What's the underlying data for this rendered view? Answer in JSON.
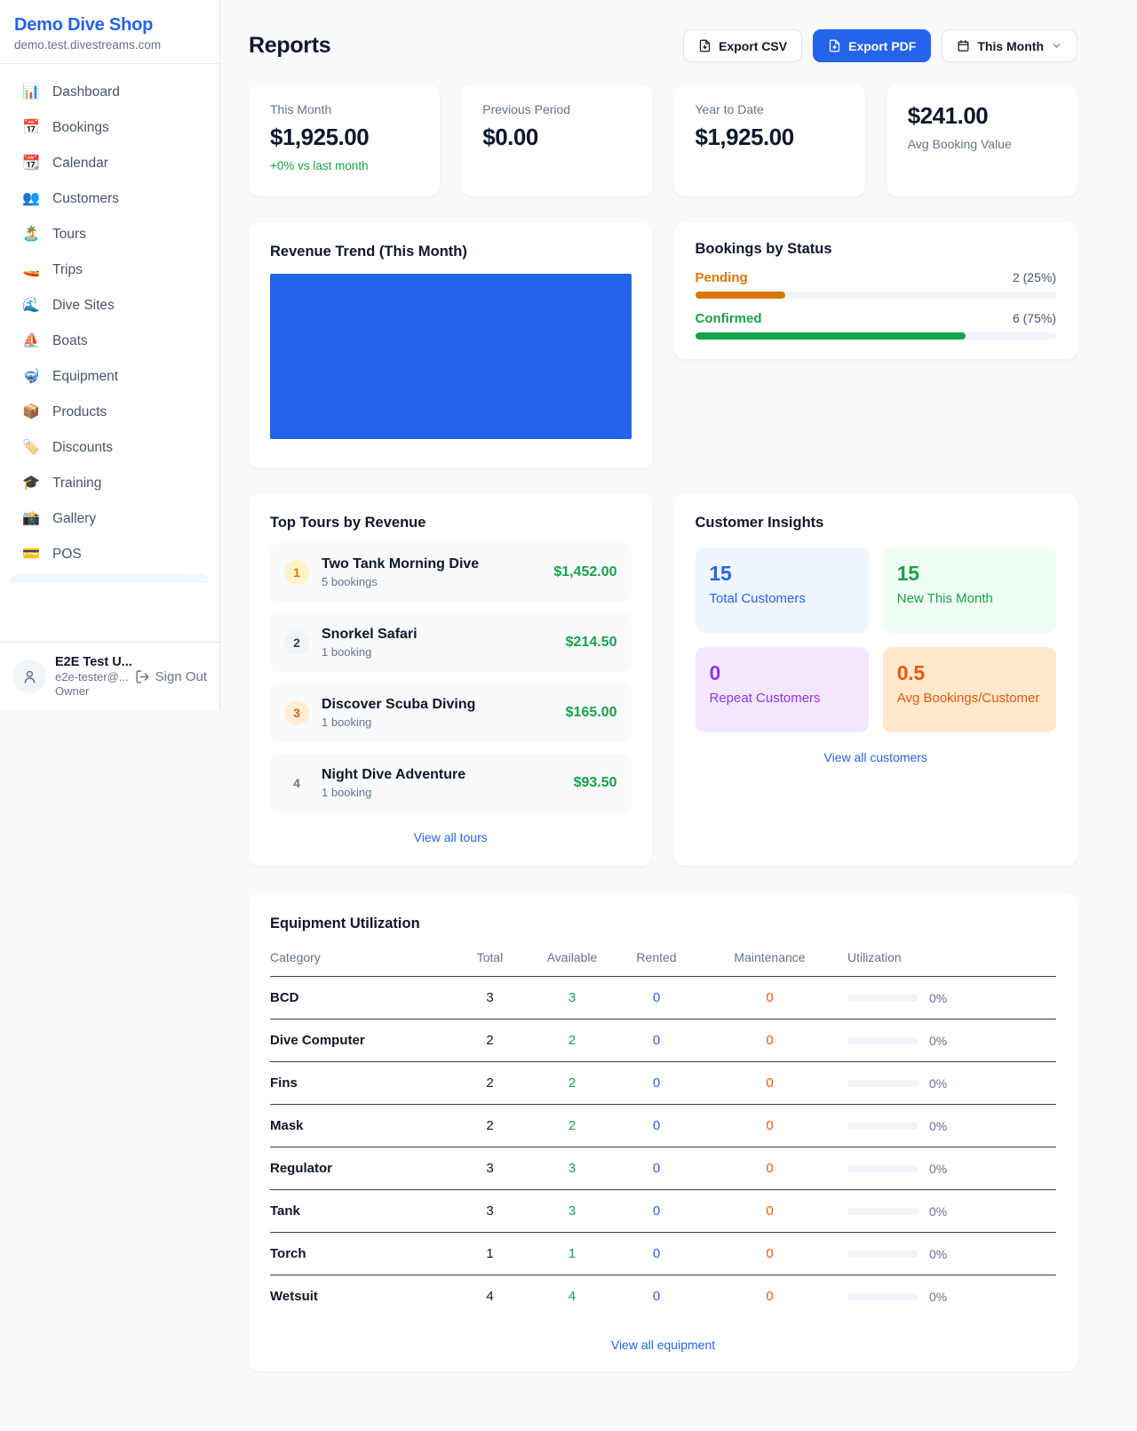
{
  "colors": {
    "accent": "#2563eb",
    "green": "#16a34a",
    "pending_orange": "#d97706",
    "confirmed_green": "#16a34a",
    "maintenance_orange": "#ea580c"
  },
  "brand": {
    "name": "Demo Dive Shop",
    "domain": "demo.test.divestreams.com"
  },
  "sidebar": {
    "items": [
      {
        "icon": "📊",
        "label": "Dashboard"
      },
      {
        "icon": "📅",
        "label": "Bookings"
      },
      {
        "icon": "📆",
        "label": "Calendar"
      },
      {
        "icon": "👥",
        "label": "Customers"
      },
      {
        "icon": "🏝️",
        "label": "Tours"
      },
      {
        "icon": "🚤",
        "label": "Trips"
      },
      {
        "icon": "🌊",
        "label": "Dive Sites"
      },
      {
        "icon": "⛵",
        "label": "Boats"
      },
      {
        "icon": "🤿",
        "label": "Equipment"
      },
      {
        "icon": "📦",
        "label": "Products"
      },
      {
        "icon": "🏷️",
        "label": "Discounts"
      },
      {
        "icon": "🎓",
        "label": "Training"
      },
      {
        "icon": "📸",
        "label": "Gallery"
      },
      {
        "icon": "💳",
        "label": "POS"
      }
    ]
  },
  "user": {
    "name": "E2E Test U...",
    "email": "e2e-tester@...",
    "role": "Owner",
    "signout_label": "Sign Out"
  },
  "header": {
    "title": "Reports",
    "export_csv_label": "Export CSV",
    "export_pdf_label": "Export PDF",
    "period_label": "This Month"
  },
  "stats": {
    "cards": [
      {
        "label": "This Month",
        "value": "$1,925.00",
        "delta": "+0% vs last month"
      },
      {
        "label": "Previous Period",
        "value": "$0.00"
      },
      {
        "label": "Year to Date",
        "value": "$1,925.00"
      },
      {
        "label": "Avg Booking Value",
        "value": "$241.00"
      }
    ]
  },
  "revenue_trend": {
    "title": "Revenue Trend (This Month)"
  },
  "bookings_by_status": {
    "title": "Bookings by Status",
    "rows": [
      {
        "label": "Pending",
        "count": "2 (25%)",
        "pct": "25%",
        "color": "#d97706"
      },
      {
        "label": "Confirmed",
        "count": "6 (75%)",
        "pct": "75%",
        "color": "#16a34a"
      }
    ]
  },
  "top_tours": {
    "title": "Top Tours by Revenue",
    "link": "View all tours",
    "items": [
      {
        "rank": "1",
        "name": "Two Tank Morning Dive",
        "sub": "5 bookings",
        "amount": "$1,452.00"
      },
      {
        "rank": "2",
        "name": "Snorkel Safari",
        "sub": "1 booking",
        "amount": "$214.50"
      },
      {
        "rank": "3",
        "name": "Discover Scuba Diving",
        "sub": "1 booking",
        "amount": "$165.00"
      },
      {
        "rank": "4",
        "name": "Night Dive Adventure",
        "sub": "1 booking",
        "amount": "$93.50"
      }
    ]
  },
  "customer_insights": {
    "title": "Customer Insights",
    "link": "View all customers",
    "tiles": [
      {
        "value": "15",
        "label": "Total Customers"
      },
      {
        "value": "15",
        "label": "New This Month"
      },
      {
        "value": "0",
        "label": "Repeat Customers"
      },
      {
        "value": "0.5",
        "label": "Avg Bookings/Customer"
      }
    ]
  },
  "equipment": {
    "title": "Equipment Utilization",
    "link": "View all equipment",
    "columns": [
      "Category",
      "Total",
      "Available",
      "Rented",
      "Maintenance",
      "Utilization"
    ],
    "rows": [
      {
        "category": "BCD",
        "total": "3",
        "available": "3",
        "rented": "0",
        "maintenance": "0",
        "utilization": "0%"
      },
      {
        "category": "Dive Computer",
        "total": "2",
        "available": "2",
        "rented": "0",
        "maintenance": "0",
        "utilization": "0%"
      },
      {
        "category": "Fins",
        "total": "2",
        "available": "2",
        "rented": "0",
        "maintenance": "0",
        "utilization": "0%"
      },
      {
        "category": "Mask",
        "total": "2",
        "available": "2",
        "rented": "0",
        "maintenance": "0",
        "utilization": "0%"
      },
      {
        "category": "Regulator",
        "total": "3",
        "available": "3",
        "rented": "0",
        "maintenance": "0",
        "utilization": "0%"
      },
      {
        "category": "Tank",
        "total": "3",
        "available": "3",
        "rented": "0",
        "maintenance": "0",
        "utilization": "0%"
      },
      {
        "category": "Torch",
        "total": "1",
        "available": "1",
        "rented": "0",
        "maintenance": "0",
        "utilization": "0%"
      },
      {
        "category": "Wetsuit",
        "total": "4",
        "available": "4",
        "rented": "0",
        "maintenance": "0",
        "utilization": "0%"
      }
    ]
  }
}
